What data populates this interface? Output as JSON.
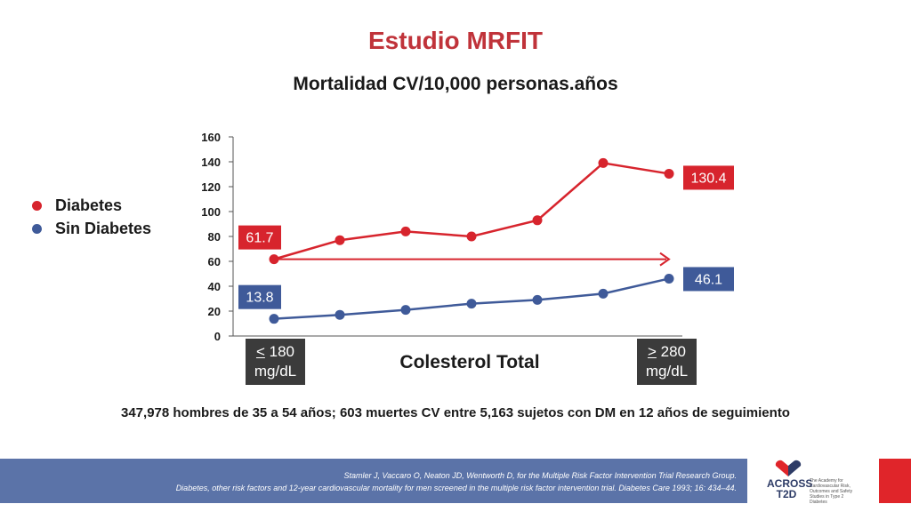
{
  "title": "Estudio MRFIT",
  "subtitle": "Mortalidad CV/10,000 personas.años",
  "legend": [
    {
      "label": "Diabetes",
      "color": "#d7242d"
    },
    {
      "label": "Sin Diabetes",
      "color": "#3f5a99"
    }
  ],
  "xcat_low": {
    "sign": "<",
    "value": "180",
    "unit": "mg/dL"
  },
  "xcat_high": {
    "sign": ">",
    "value": "280",
    "unit": "mg/dL"
  },
  "note": "347,978 hombres de 35 a 54 años; 603 muertes CV entre 5,163 sujetos con DM en 12 años de seguimiento",
  "footer": {
    "line1": "Stamler J, Vaccaro O, Neaton JD, Wentworth D, for the Multiple Risk Factor Intervention Trial Research Group.",
    "line2": "Diabetes, other risk factors and 12-year cardiovascular mortality for men screened in the multiple risk factor intervention trial. Diabetes Care 1993; 16: 434–44."
  },
  "logo": {
    "name_line1": "ACROSS",
    "name_line2": "T2D",
    "blurb": "The Academy for Cardiovascular Risk, Outcomes and Safety Studies in Type 2 Diabetes"
  },
  "chart_data": {
    "type": "line",
    "xlabel": "Colesterol Total",
    "ylabel": "",
    "ylim": [
      0,
      160
    ],
    "yticks": [
      0,
      20,
      40,
      60,
      80,
      100,
      120,
      140,
      160
    ],
    "x": [
      1,
      2,
      3,
      4,
      5,
      6,
      7
    ],
    "series": [
      {
        "name": "Diabetes",
        "color": "#d7242d",
        "values": [
          61.7,
          77,
          84,
          80,
          93,
          139,
          130.4
        ],
        "label_first": "61.7",
        "label_last": "130.4"
      },
      {
        "name": "Sin Diabetes",
        "color": "#3f5a99",
        "values": [
          13.8,
          17,
          21,
          26,
          29,
          34,
          46.1
        ],
        "label_first": "13.8",
        "label_last": "46.1"
      }
    ],
    "annotation": {
      "type": "arrow",
      "from_x": 1,
      "to_x": 7,
      "y": 61.7,
      "color": "#d7242d"
    },
    "grid": false
  }
}
